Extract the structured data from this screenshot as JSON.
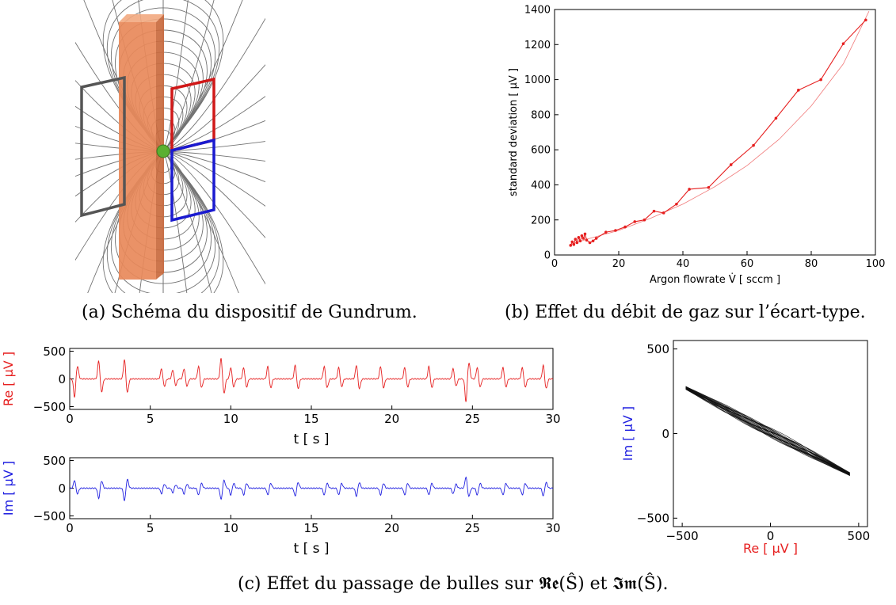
{
  "captions": {
    "a": "(a) Schéma du dispositif de Gundrum.",
    "b": "(b) Effet du débit de gaz sur l’écart-type.",
    "c": "(c) Effet du passage de bulles sur 𝕽𝖊(Ŝ) et 𝕴𝖒(Ŝ)."
  },
  "colors": {
    "pipe": "#e8895a",
    "red": "#e62020",
    "blue": "#2020e0",
    "black": "#111111",
    "gray_frame": "#555555",
    "ball": "#5ab030"
  },
  "chart_data": [
    {
      "id": "b",
      "type": "line",
      "xlabel": "Argon flowrate V̇  [ sccm ]",
      "ylabel": "standard deviation [ μV ]",
      "xlim": [
        0,
        100
      ],
      "ylim": [
        0,
        1400
      ],
      "xticks": [
        "0",
        "20",
        "40",
        "60",
        "80",
        "100"
      ],
      "yticks": [
        "0",
        "200",
        "400",
        "600",
        "800",
        "1000",
        "1200",
        "1400"
      ],
      "grid": false,
      "series": [
        {
          "style": "measured",
          "color": "#e62020",
          "x": [
            5,
            5.5,
            6,
            6.5,
            7,
            7.5,
            8,
            8.5,
            9,
            9.5,
            10,
            11,
            12,
            13,
            16,
            19,
            22,
            25,
            28,
            31,
            34,
            38,
            42,
            48,
            55,
            62,
            69,
            76,
            83,
            90,
            97
          ],
          "y": [
            55,
            75,
            60,
            90,
            70,
            100,
            80,
            110,
            95,
            120,
            85,
            70,
            80,
            95,
            130,
            140,
            160,
            190,
            200,
            250,
            240,
            290,
            375,
            385,
            515,
            625,
            780,
            940,
            1000,
            1205,
            1340
          ]
        },
        {
          "style": "fit",
          "color": "#e62020",
          "x": [
            5,
            10,
            20,
            30,
            40,
            50,
            60,
            70,
            80,
            90,
            98
          ],
          "y": [
            60,
            90,
            140,
            210,
            290,
            390,
            510,
            660,
            850,
            1090,
            1390
          ]
        }
      ]
    },
    {
      "id": "c-re",
      "type": "line",
      "xlabel": "t [ s ]",
      "ylabel": "Re [  μV ]",
      "xlim": [
        0,
        30
      ],
      "ylim": [
        -550,
        550
      ],
      "xticks": [
        "0",
        "5",
        "10",
        "15",
        "20",
        "25",
        "30"
      ],
      "yticks": [
        "−500",
        "0",
        "500"
      ],
      "color": "#e62020",
      "events_t": [
        0.3,
        1.8,
        3.4,
        5.7,
        6.4,
        7.1,
        8.0,
        9.4,
        10.0,
        10.8,
        12.3,
        14.0,
        15.8,
        16.7,
        17.8,
        19.3,
        20.8,
        22.3,
        23.8,
        24.6,
        25.3,
        26.9,
        28.1,
        29.4
      ],
      "events_amp": [
        -0.8,
        0.8,
        0.85,
        0.45,
        0.4,
        0.45,
        0.55,
        0.9,
        0.5,
        0.5,
        0.55,
        0.6,
        0.55,
        0.5,
        0.6,
        0.55,
        0.5,
        0.55,
        0.45,
        -1.0,
        0.5,
        0.5,
        0.5,
        0.6
      ]
    },
    {
      "id": "c-im",
      "type": "line",
      "xlabel": "t [ s ]",
      "ylabel": "Im [  μV ]",
      "xlim": [
        0,
        30
      ],
      "ylim": [
        -550,
        550
      ],
      "xticks": [
        "0",
        "5",
        "10",
        "15",
        "20",
        "25",
        "30"
      ],
      "yticks": [
        "−500",
        "0",
        "500"
      ],
      "color": "#2020e0",
      "events_t": [
        0.3,
        1.8,
        3.4,
        5.7,
        6.4,
        7.1,
        8.0,
        9.4,
        10.0,
        10.8,
        12.3,
        14.0,
        15.8,
        16.7,
        17.8,
        19.3,
        20.8,
        22.3,
        23.8,
        24.6,
        25.3,
        26.9,
        28.1,
        29.4
      ],
      "events_amp": [
        0.35,
        -0.45,
        -0.55,
        -0.25,
        -0.2,
        -0.25,
        -0.3,
        -0.5,
        -0.3,
        -0.3,
        -0.3,
        -0.35,
        -0.3,
        -0.3,
        -0.35,
        -0.3,
        -0.3,
        -0.3,
        -0.25,
        0.5,
        -0.3,
        -0.3,
        -0.3,
        -0.35
      ]
    },
    {
      "id": "c-phase",
      "type": "line",
      "xlabel": "Re [ μV ]",
      "ylabel": "Im [ μV ]",
      "xlim": [
        -550,
        550
      ],
      "ylim": [
        -550,
        550
      ],
      "xticks": [
        "−500",
        "0",
        "500"
      ],
      "yticks": [
        "−500",
        "0",
        "500"
      ],
      "color": "#111111",
      "from": [
        -480,
        270
      ],
      "to": [
        450,
        -240
      ]
    }
  ]
}
